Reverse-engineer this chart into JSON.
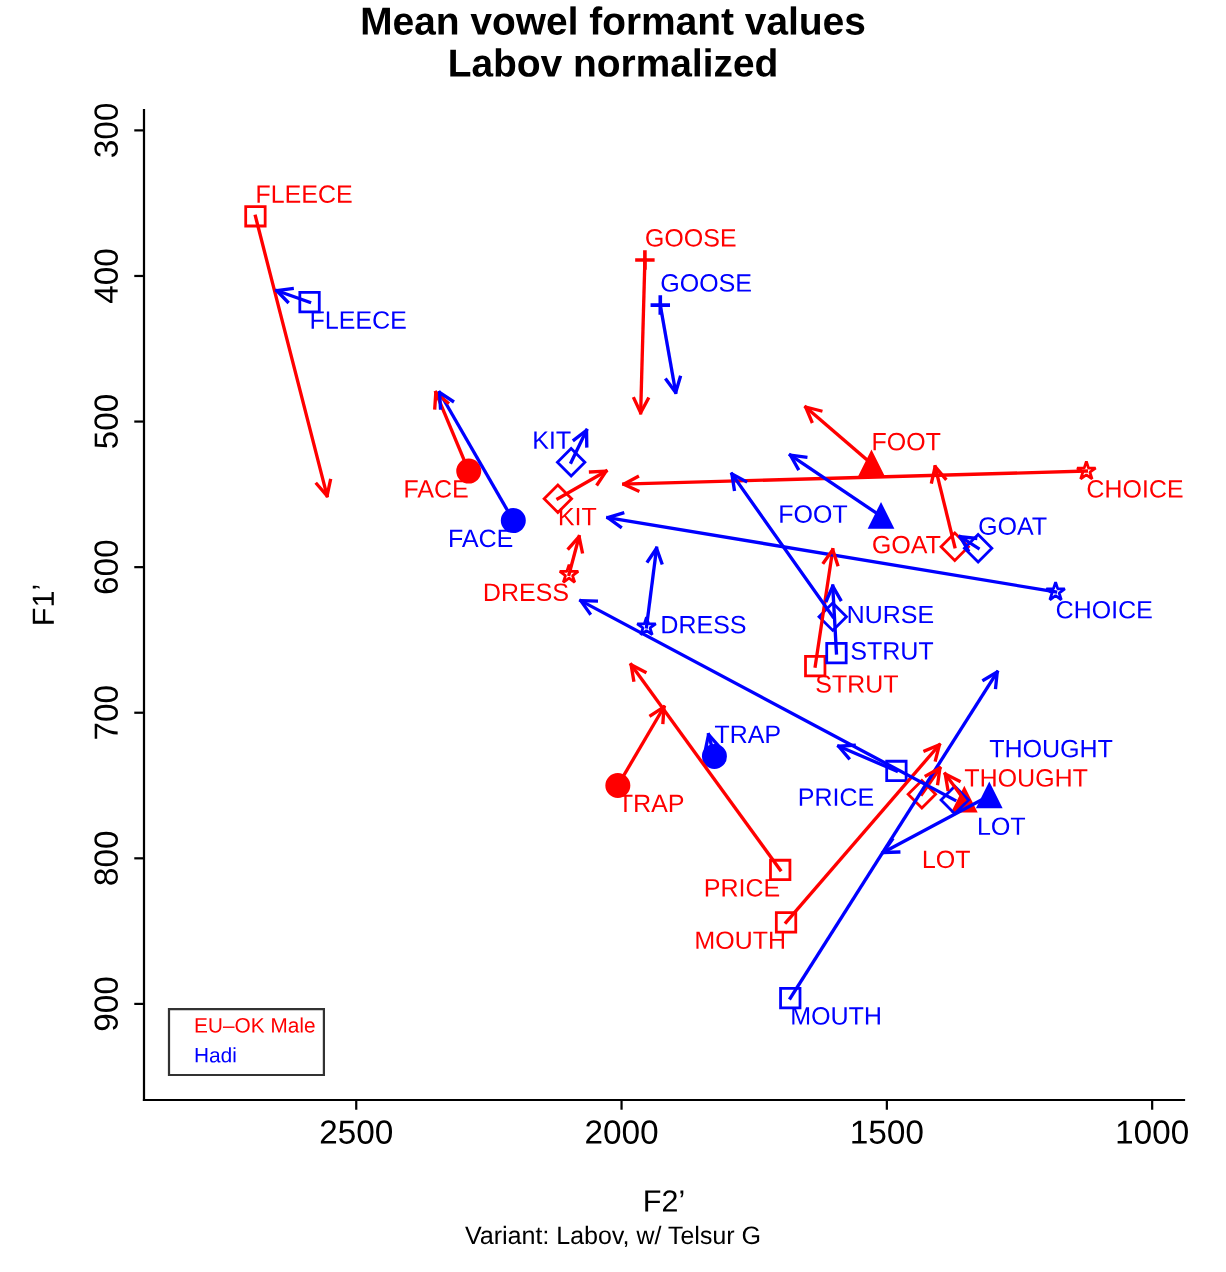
{
  "chart_data": {
    "type": "line",
    "title": "Mean vowel formant values\nLabov normalized",
    "xlabel": "F2’",
    "ylabel": "F1’",
    "annotations": [
      "Variant: Labov, w/ Telsur G"
    ],
    "xlim": [
      2900,
      940
    ],
    "ylim": [
      966,
      286
    ],
    "xticks": [
      2500,
      2000,
      1500,
      1000
    ],
    "yticks": [
      300,
      400,
      500,
      600,
      700,
      800,
      900
    ],
    "grid": false,
    "legend": "bottom left",
    "line_style": "solid",
    "series": [
      {
        "name": "EU–OK Male",
        "color": "#ff0000",
        "marker": "square",
        "x": [
          2690,
          2555
        ],
        "values": [
          359,
          551
        ],
        "value_labels": [
          "FLEECE",
          null
        ]
      },
      {
        "color": "#ff0000",
        "marker": "cross",
        "x": [
          1956,
          1964
        ],
        "values": [
          389,
          494
        ],
        "value_labels": [
          "GOOSE",
          null
        ]
      },
      {
        "color": "#ff0000",
        "marker": "circle",
        "x": [
          2288,
          2350
        ],
        "values": [
          534,
          480
        ],
        "value_labels": [
          "FACE",
          null
        ]
      },
      {
        "color": "#ff0000",
        "marker": "diamond",
        "x": [
          2120,
          2029
        ],
        "values": [
          553,
          534
        ],
        "value_labels": [
          "KIT",
          null
        ]
      },
      {
        "color": "#ff0000",
        "marker": "star",
        "x": [
          2099,
          2080
        ],
        "values": [
          605,
          579
        ],
        "value_labels": [
          "DRESS",
          null
        ]
      },
      {
        "color": "#ff0000",
        "marker": "circle",
        "x": [
          2007,
          1920
        ],
        "values": [
          750,
          696
        ],
        "value_labels": [
          "TRAP",
          null
        ]
      },
      {
        "color": "#ff0000",
        "marker": "square",
        "x": [
          1701,
          1982
        ],
        "values": [
          808,
          667
        ],
        "value_labels": [
          "PRICE",
          null
        ]
      },
      {
        "color": "#ff0000",
        "marker": "square",
        "x": [
          1690,
          1401
        ],
        "values": [
          844,
          722
        ],
        "value_labels": [
          "MOUTH",
          null
        ]
      },
      {
        "color": "#ff0000",
        "marker": "square",
        "x": [
          1635,
          1602
        ],
        "values": [
          668,
          588
        ],
        "value_labels": [
          "STRUT",
          null
        ]
      },
      {
        "color": "#ff0000",
        "marker": "triangle",
        "x": [
          1529,
          1653
        ],
        "values": [
          529,
          490
        ],
        "value_labels": [
          "FOOT",
          null
        ]
      },
      {
        "color": "#ff0000",
        "marker": "star",
        "x": [
          1124,
          1996
        ],
        "values": [
          534,
          543
        ],
        "value_labels": [
          "CHOICE",
          null
        ]
      },
      {
        "color": "#ff0000",
        "marker": "diamond",
        "x": [
          1372,
          1409
        ],
        "values": [
          586,
          531
        ],
        "value_labels": [
          "GOAT",
          null
        ]
      },
      {
        "color": "#ff0000",
        "marker": "diamond",
        "x": [
          1434,
          1400
        ],
        "values": [
          756,
          738
        ],
        "value_labels": [
          "LOT",
          null
        ]
      },
      {
        "color": "#ff0000",
        "marker": "triangle",
        "x": [
          1354,
          1390
        ],
        "values": [
          760,
          742
        ],
        "value_labels": [
          "THOUGHT",
          null
        ]
      },
      {
        "name": "Hadi",
        "color": "#0000ff",
        "marker": "square",
        "x": [
          2588,
          2650
        ],
        "values": [
          418,
          410
        ],
        "value_labels": [
          "FLEECE",
          null
        ]
      },
      {
        "color": "#0000ff",
        "marker": "cross",
        "x": [
          1927,
          1898
        ],
        "values": [
          420,
          480
        ],
        "value_labels": [
          "GOOSE",
          null
        ]
      },
      {
        "color": "#0000ff",
        "marker": "circle",
        "x": [
          2204,
          2343
        ],
        "values": [
          568,
          480
        ],
        "value_labels": [
          "FACE",
          null
        ]
      },
      {
        "color": "#0000ff",
        "marker": "diamond",
        "x": [
          2095,
          2066
        ],
        "values": [
          528,
          506
        ],
        "value_labels": [
          "KIT",
          null
        ]
      },
      {
        "color": "#0000ff",
        "marker": "star",
        "x": [
          1953,
          1934
        ],
        "values": [
          641,
          587
        ],
        "value_labels": [
          "DRESS",
          null
        ]
      },
      {
        "color": "#0000ff",
        "marker": "circle",
        "x": [
          1825,
          1836
        ],
        "values": [
          730,
          715
        ],
        "value_labels": [
          "TRAP",
          null
        ]
      },
      {
        "color": "#0000ff",
        "marker": "square",
        "x": [
          1482,
          1591
        ],
        "values": [
          740,
          723
        ],
        "value_labels": [
          "PRICE",
          null
        ]
      },
      {
        "color": "#0000ff",
        "marker": "diamond",
        "x": [
          1372,
          2077
        ],
        "values": [
          760,
          623
        ],
        "value_labels": [
          "LOT",
          null
        ]
      },
      {
        "color": "#0000ff",
        "marker": "triangle",
        "x": [
          1307,
          1507
        ],
        "values": [
          757,
          796
        ],
        "value_labels": [
          "THOUGHT",
          null
        ]
      },
      {
        "color": "#0000ff",
        "marker": "square",
        "x": [
          1682,
          1292
        ],
        "values": [
          896,
          672
        ],
        "value_labels": [
          "MOUTH",
          null
        ]
      },
      {
        "color": "#0000ff",
        "marker": "diamond",
        "x": [
          1602,
          1792
        ],
        "values": [
          634,
          536
        ],
        "value_labels": [
          "NURSE",
          null
        ]
      },
      {
        "color": "#0000ff",
        "marker": "square",
        "x": [
          1595,
          1602
        ],
        "values": [
          659,
          613
        ],
        "value_labels": [
          "STRUT",
          null
        ]
      },
      {
        "color": "#0000ff",
        "marker": "triangle",
        "x": [
          1511,
          1682
        ],
        "values": [
          565,
          523
        ],
        "value_labels": [
          "FOOT",
          null
        ]
      },
      {
        "color": "#0000ff",
        "marker": "star",
        "x": [
          1182,
          2026
        ],
        "values": [
          617,
          566
        ],
        "value_labels": [
          "CHOICE",
          null
        ]
      },
      {
        "color": "#0000ff",
        "marker": "diamond",
        "x": [
          1328,
          1362
        ],
        "values": [
          587,
          579
        ],
        "value_labels": [
          "GOAT",
          null
        ]
      }
    ]
  }
}
